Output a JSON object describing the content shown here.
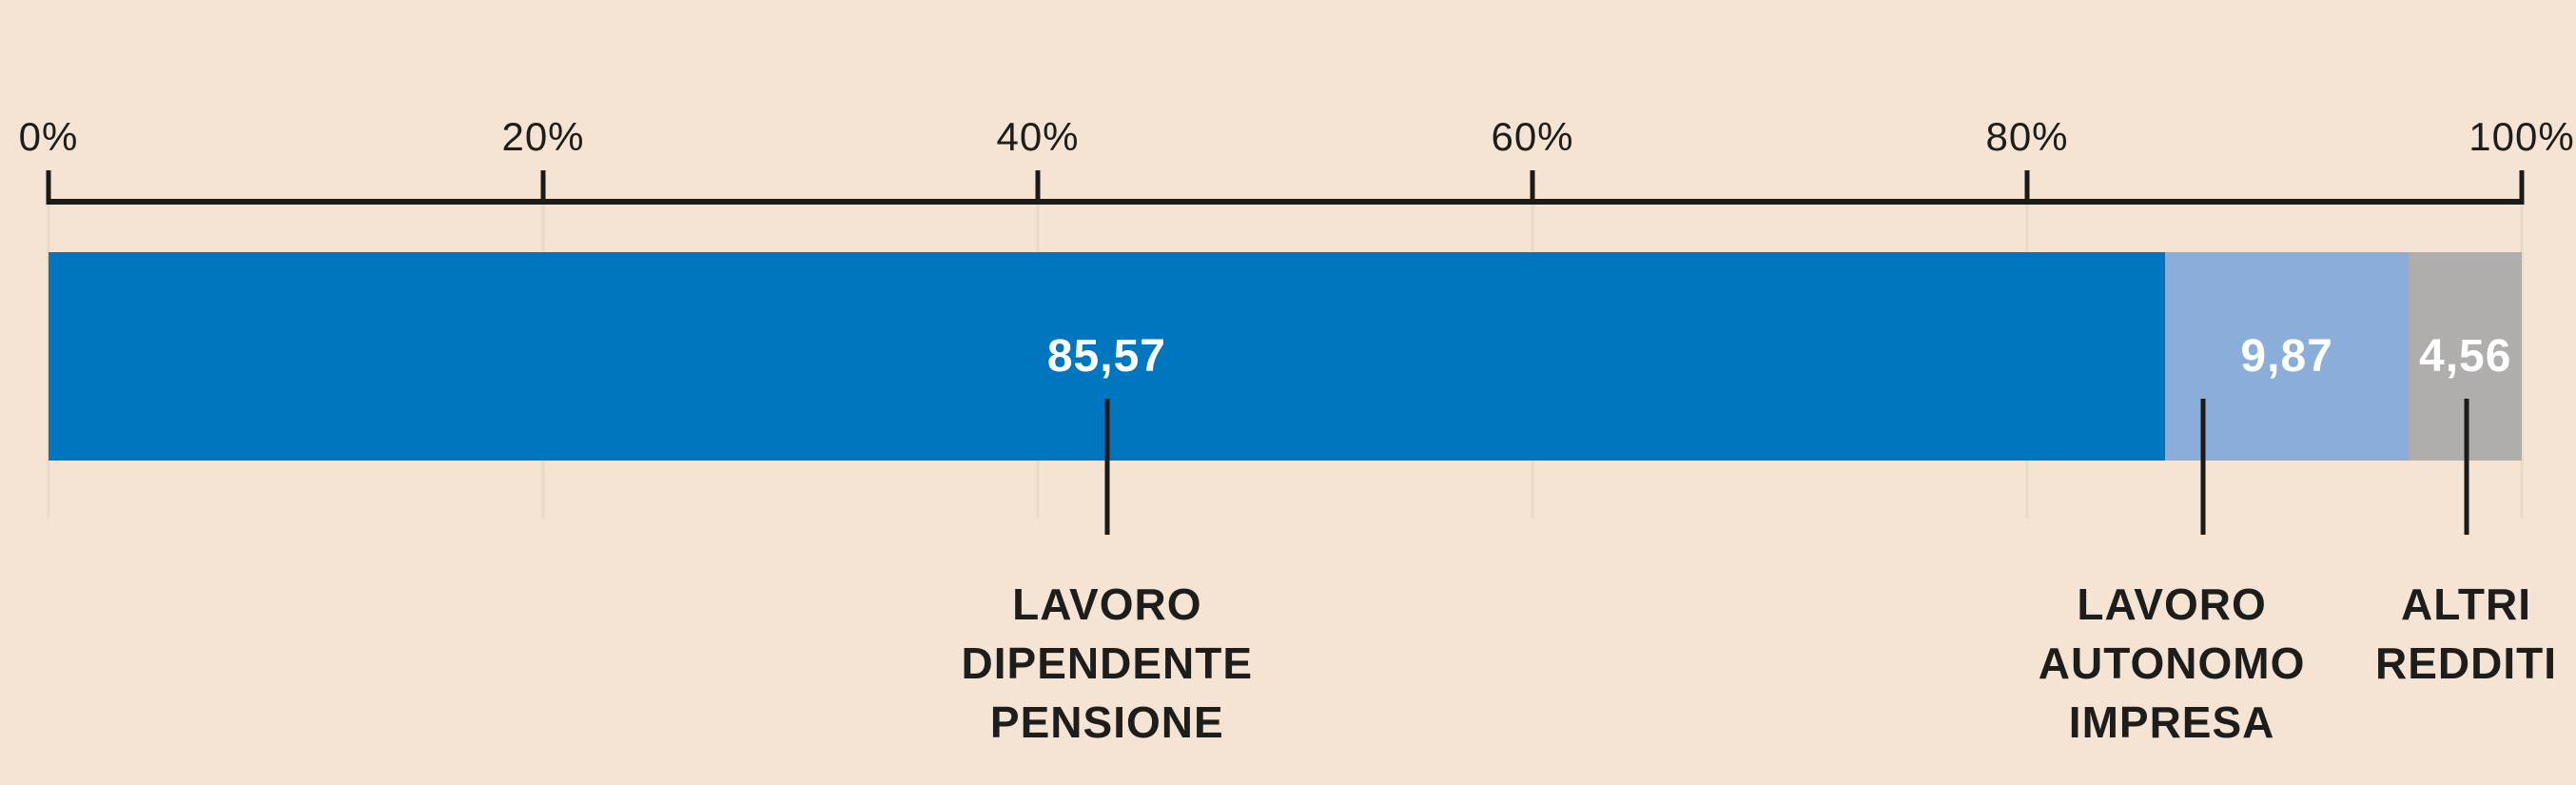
{
  "chart_data": {
    "type": "bar",
    "variant": "horizontal-stacked",
    "title": "",
    "unit": "%",
    "decimal_separator": ",",
    "axis": {
      "position": "top",
      "min": 0,
      "max": 100,
      "tick_values": [
        0,
        20,
        40,
        60,
        80,
        100
      ],
      "tick_labels": [
        "0%",
        "20%",
        "40%",
        "60%",
        "80%",
        "100%"
      ],
      "grid": true
    },
    "segments": [
      {
        "label": "LAVORO DIPENDENTE PENSIONE",
        "label_lines": [
          "LAVORO",
          "DIPENDENTE",
          "PENSIONE"
        ],
        "value": 85.57,
        "value_label": "85,57",
        "color": "#0076c1",
        "leader_pct": 42.8,
        "text_pct": 42.8
      },
      {
        "label": "LAVORO AUTONOMO IMPRESA",
        "label_lines": [
          "LAVORO",
          "AUTONOMO",
          "IMPRESA"
        ],
        "value": 9.87,
        "value_label": "9,87",
        "color": "#8badda",
        "leader_pct": 87.1,
        "text_pct": 85.85
      },
      {
        "label": "ALTRI REDDITI",
        "label_lines": [
          "ALTRI",
          "REDDITI"
        ],
        "value": 4.56,
        "value_label": "4,56",
        "color": "#b0aeac",
        "leader_pct": 97.75,
        "text_pct": 97.75
      }
    ],
    "colors": {
      "background": "#f5e4d3",
      "axis": "#1b1b19",
      "gridline": "#e9dccb",
      "category_text": "#1d1d1b",
      "tick_text": "#1d1d1b",
      "value_text": "#ffffff"
    },
    "legend": null
  }
}
